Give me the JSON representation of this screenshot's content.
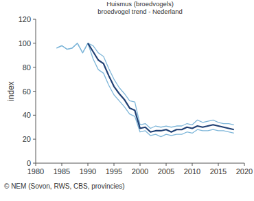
{
  "chart_data": {
    "type": "line",
    "title": "Huismus (broedvogels)",
    "subtitle": "broedvogel trend - Nederland",
    "y_label": "index",
    "source": "© NEM (Sovon, RWS, CBS, provincies)",
    "x": [
      1984,
      1985,
      1986,
      1987,
      1988,
      1989,
      1990,
      1991,
      1992,
      1993,
      1994,
      1995,
      1996,
      1997,
      1998,
      1999,
      2000,
      2001,
      2002,
      2003,
      2004,
      2005,
      2006,
      2007,
      2008,
      2009,
      2010,
      2011,
      2012,
      2013,
      2014,
      2015,
      2016,
      2017,
      2018
    ],
    "series": [
      {
        "color": "#7eb6d9",
        "values": [
          96,
          98,
          95,
          96,
          100,
          92,
          100,
          98,
          92,
          89,
          79,
          70,
          63,
          58,
          52,
          51,
          32,
          33,
          29,
          31,
          30,
          31,
          30,
          31,
          31,
          33,
          32,
          36,
          34,
          35,
          36,
          34,
          33,
          33,
          32
        ]
      },
      {
        "color": "#7eb6d9",
        "values": [
          96,
          98,
          95,
          96,
          100,
          92,
          100,
          87,
          78,
          75,
          65,
          57,
          52,
          47,
          41,
          39,
          26,
          27,
          23,
          24,
          22,
          24,
          23,
          24,
          24,
          26,
          25,
          28,
          27,
          27,
          28,
          27,
          27,
          26,
          25
        ]
      },
      {
        "color": "#1f3f73",
        "values": [
          null,
          null,
          null,
          null,
          null,
          null,
          100,
          93,
          86,
          83,
          73,
          64,
          58,
          53,
          46,
          44,
          29,
          30,
          26,
          27,
          27,
          28,
          26,
          28,
          28,
          30,
          29,
          31,
          30,
          31,
          32,
          31,
          30,
          29,
          28
        ]
      }
    ],
    "xlim": [
      1980,
      2020
    ],
    "xticks": [
      1980,
      1985,
      1990,
      1995,
      2000,
      2005,
      2010,
      2015,
      2020
    ],
    "ylim": [
      0,
      120
    ],
    "yticks": [
      0,
      20,
      40,
      60,
      80,
      100,
      120
    ],
    "grid": false
  }
}
